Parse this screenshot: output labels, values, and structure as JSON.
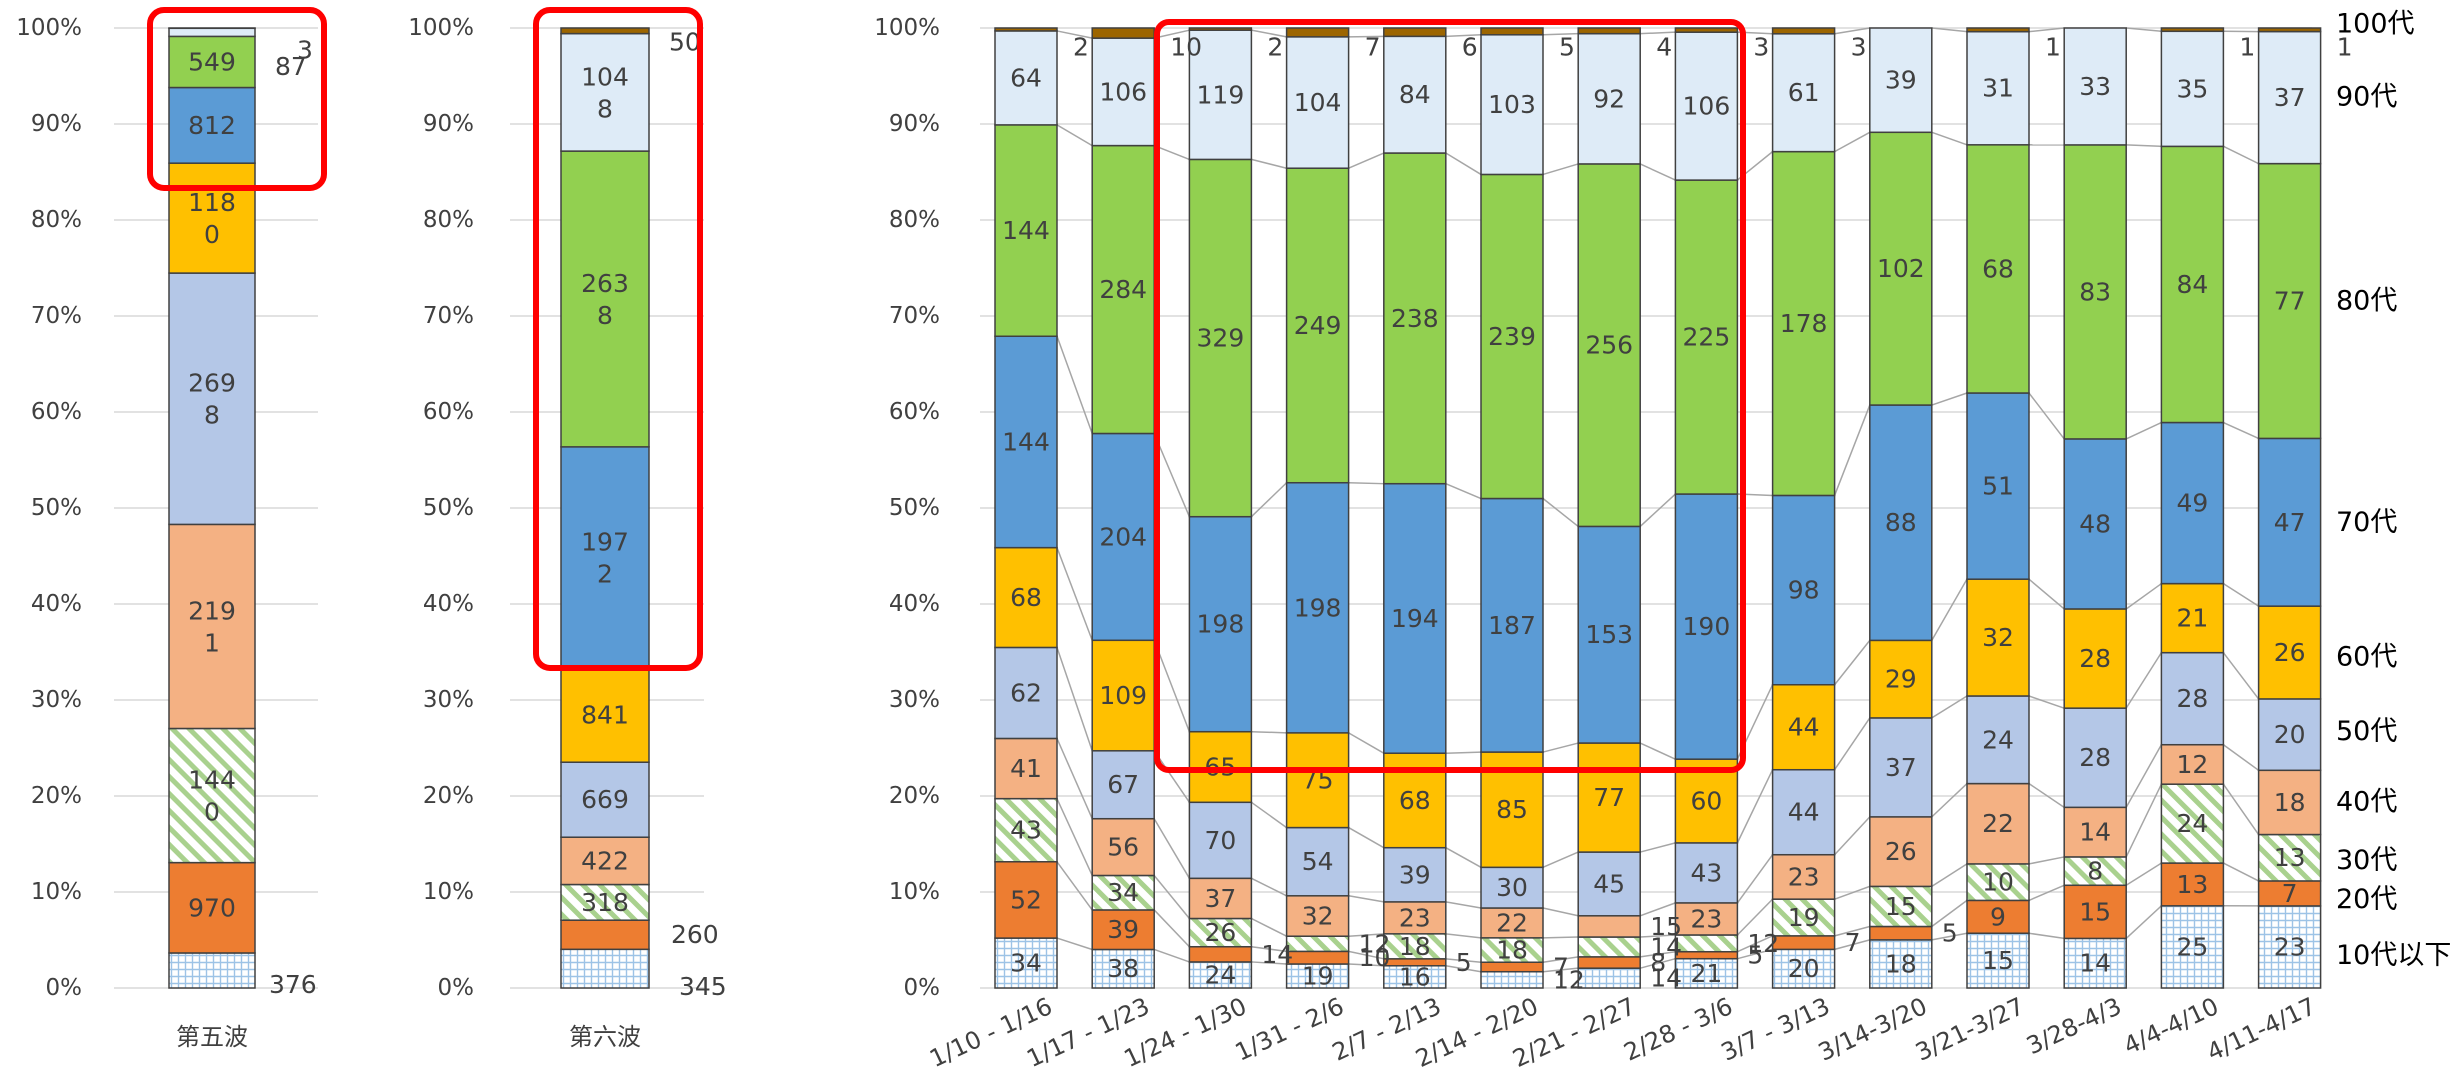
{
  "chart_data": [
    {
      "type": "bar",
      "stacked": "percent",
      "title": "",
      "ylim": [
        0,
        100
      ],
      "y_ticks": [
        "0%",
        "10%",
        "20%",
        "30%",
        "40%",
        "50%",
        "60%",
        "70%",
        "80%",
        "90%",
        "100%"
      ],
      "categories": [
        "第五波"
      ],
      "series": [
        {
          "name": "",
          "values": [
            376
          ]
        },
        {
          "name": "",
          "values": [
            970
          ]
        },
        {
          "name": "",
          "values": [
            1440
          ]
        },
        {
          "name": "",
          "values": [
            2191
          ]
        },
        {
          "name": "",
          "values": [
            2698
          ]
        },
        {
          "name": "",
          "values": [
            1180
          ]
        },
        {
          "name": "",
          "values": [
            812
          ]
        },
        {
          "name": "",
          "values": [
            549
          ]
        },
        {
          "name": "",
          "values": [
            87
          ]
        },
        {
          "name": "",
          "values": [
            3
          ]
        }
      ],
      "value_labels": [
        [
          "376",
          "970",
          "144\n0",
          "219\n1",
          "269\n8",
          "118\n0",
          "812",
          "549",
          "87",
          "3"
        ]
      ]
    },
    {
      "type": "bar",
      "stacked": "percent",
      "title": "",
      "ylim": [
        0,
        100
      ],
      "y_ticks": [
        "0%",
        "10%",
        "20%",
        "30%",
        "40%",
        "50%",
        "60%",
        "70%",
        "80%",
        "90%",
        "100%"
      ],
      "categories": [
        "第六波"
      ],
      "series": [
        {
          "name": "",
          "values": [
            345
          ]
        },
        {
          "name": "",
          "values": [
            260
          ]
        },
        {
          "name": "",
          "values": [
            318
          ]
        },
        {
          "name": "",
          "values": [
            422
          ]
        },
        {
          "name": "",
          "values": [
            669
          ]
        },
        {
          "name": "",
          "values": [
            841
          ]
        },
        {
          "name": "",
          "values": [
            1972
          ]
        },
        {
          "name": "",
          "values": [
            2638
          ]
        },
        {
          "name": "",
          "values": [
            1048
          ]
        },
        {
          "name": "",
          "values": [
            50
          ]
        }
      ],
      "value_labels": [
        [
          "345",
          "260",
          "318",
          "422",
          "669",
          "841",
          "197\n2",
          "263\n8",
          "104\n8",
          "50"
        ]
      ]
    },
    {
      "type": "bar",
      "stacked": "percent",
      "title": "",
      "ylim": [
        0,
        100
      ],
      "y_ticks": [
        "0%",
        "10%",
        "20%",
        "30%",
        "40%",
        "50%",
        "60%",
        "70%",
        "80%",
        "90%",
        "100%"
      ],
      "categories": [
        "1/10 - 1/16",
        "1/17 - 1/23",
        "1/24 - 1/30",
        "1/31 - 2/6",
        "2/7 - 2/13",
        "2/14 - 2/20",
        "2/21 - 2/27",
        "2/28 - 3/6",
        "3/7 - 3/13",
        "3/14-3/20",
        "3/21-3/27",
        "3/28-4/3",
        "4/4-4/10",
        "4/11-4/17"
      ],
      "series": [
        {
          "name": "10代以下",
          "values": [
            34,
            38,
            24,
            19,
            16,
            12,
            14,
            21,
            20,
            18,
            15,
            14,
            25,
            23
          ]
        },
        {
          "name": "20代",
          "values": [
            52,
            39,
            14,
            10,
            5,
            7,
            8,
            5,
            7,
            5,
            9,
            15,
            13,
            7
          ]
        },
        {
          "name": "30代",
          "values": [
            43,
            34,
            26,
            12,
            18,
            18,
            14,
            12,
            19,
            15,
            10,
            8,
            24,
            13
          ]
        },
        {
          "name": "40代",
          "values": [
            41,
            56,
            37,
            32,
            23,
            22,
            15,
            23,
            23,
            26,
            22,
            14,
            12,
            18
          ]
        },
        {
          "name": "50代",
          "values": [
            62,
            67,
            70,
            54,
            39,
            30,
            45,
            43,
            44,
            37,
            24,
            28,
            28,
            20
          ]
        },
        {
          "name": "60代",
          "values": [
            68,
            109,
            65,
            75,
            68,
            85,
            77,
            60,
            44,
            29,
            32,
            28,
            21,
            26
          ]
        },
        {
          "name": "70代",
          "values": [
            144,
            204,
            198,
            198,
            194,
            187,
            153,
            190,
            98,
            88,
            51,
            48,
            49,
            47
          ]
        },
        {
          "name": "80代",
          "values": [
            144,
            284,
            329,
            249,
            238,
            239,
            256,
            225,
            178,
            102,
            68,
            83,
            84,
            77
          ]
        },
        {
          "name": "90代",
          "values": [
            64,
            106,
            119,
            104,
            84,
            103,
            92,
            106,
            61,
            39,
            31,
            33,
            35,
            37
          ]
        },
        {
          "name": "100代",
          "values": [
            2,
            10,
            2,
            7,
            6,
            5,
            4,
            3,
            3,
            0,
            1,
            0,
            1,
            1
          ]
        }
      ],
      "legend_position": "right"
    }
  ],
  "colors": [
    "#c5d9f1",
    "#ed7d31",
    "#a9d18e",
    "#f4b183",
    "#b4c7e7",
    "#ffc000",
    "#5b9bd5",
    "#92d050",
    "#deebf7",
    "#9c6500"
  ],
  "highlight_color": "#ff0000"
}
